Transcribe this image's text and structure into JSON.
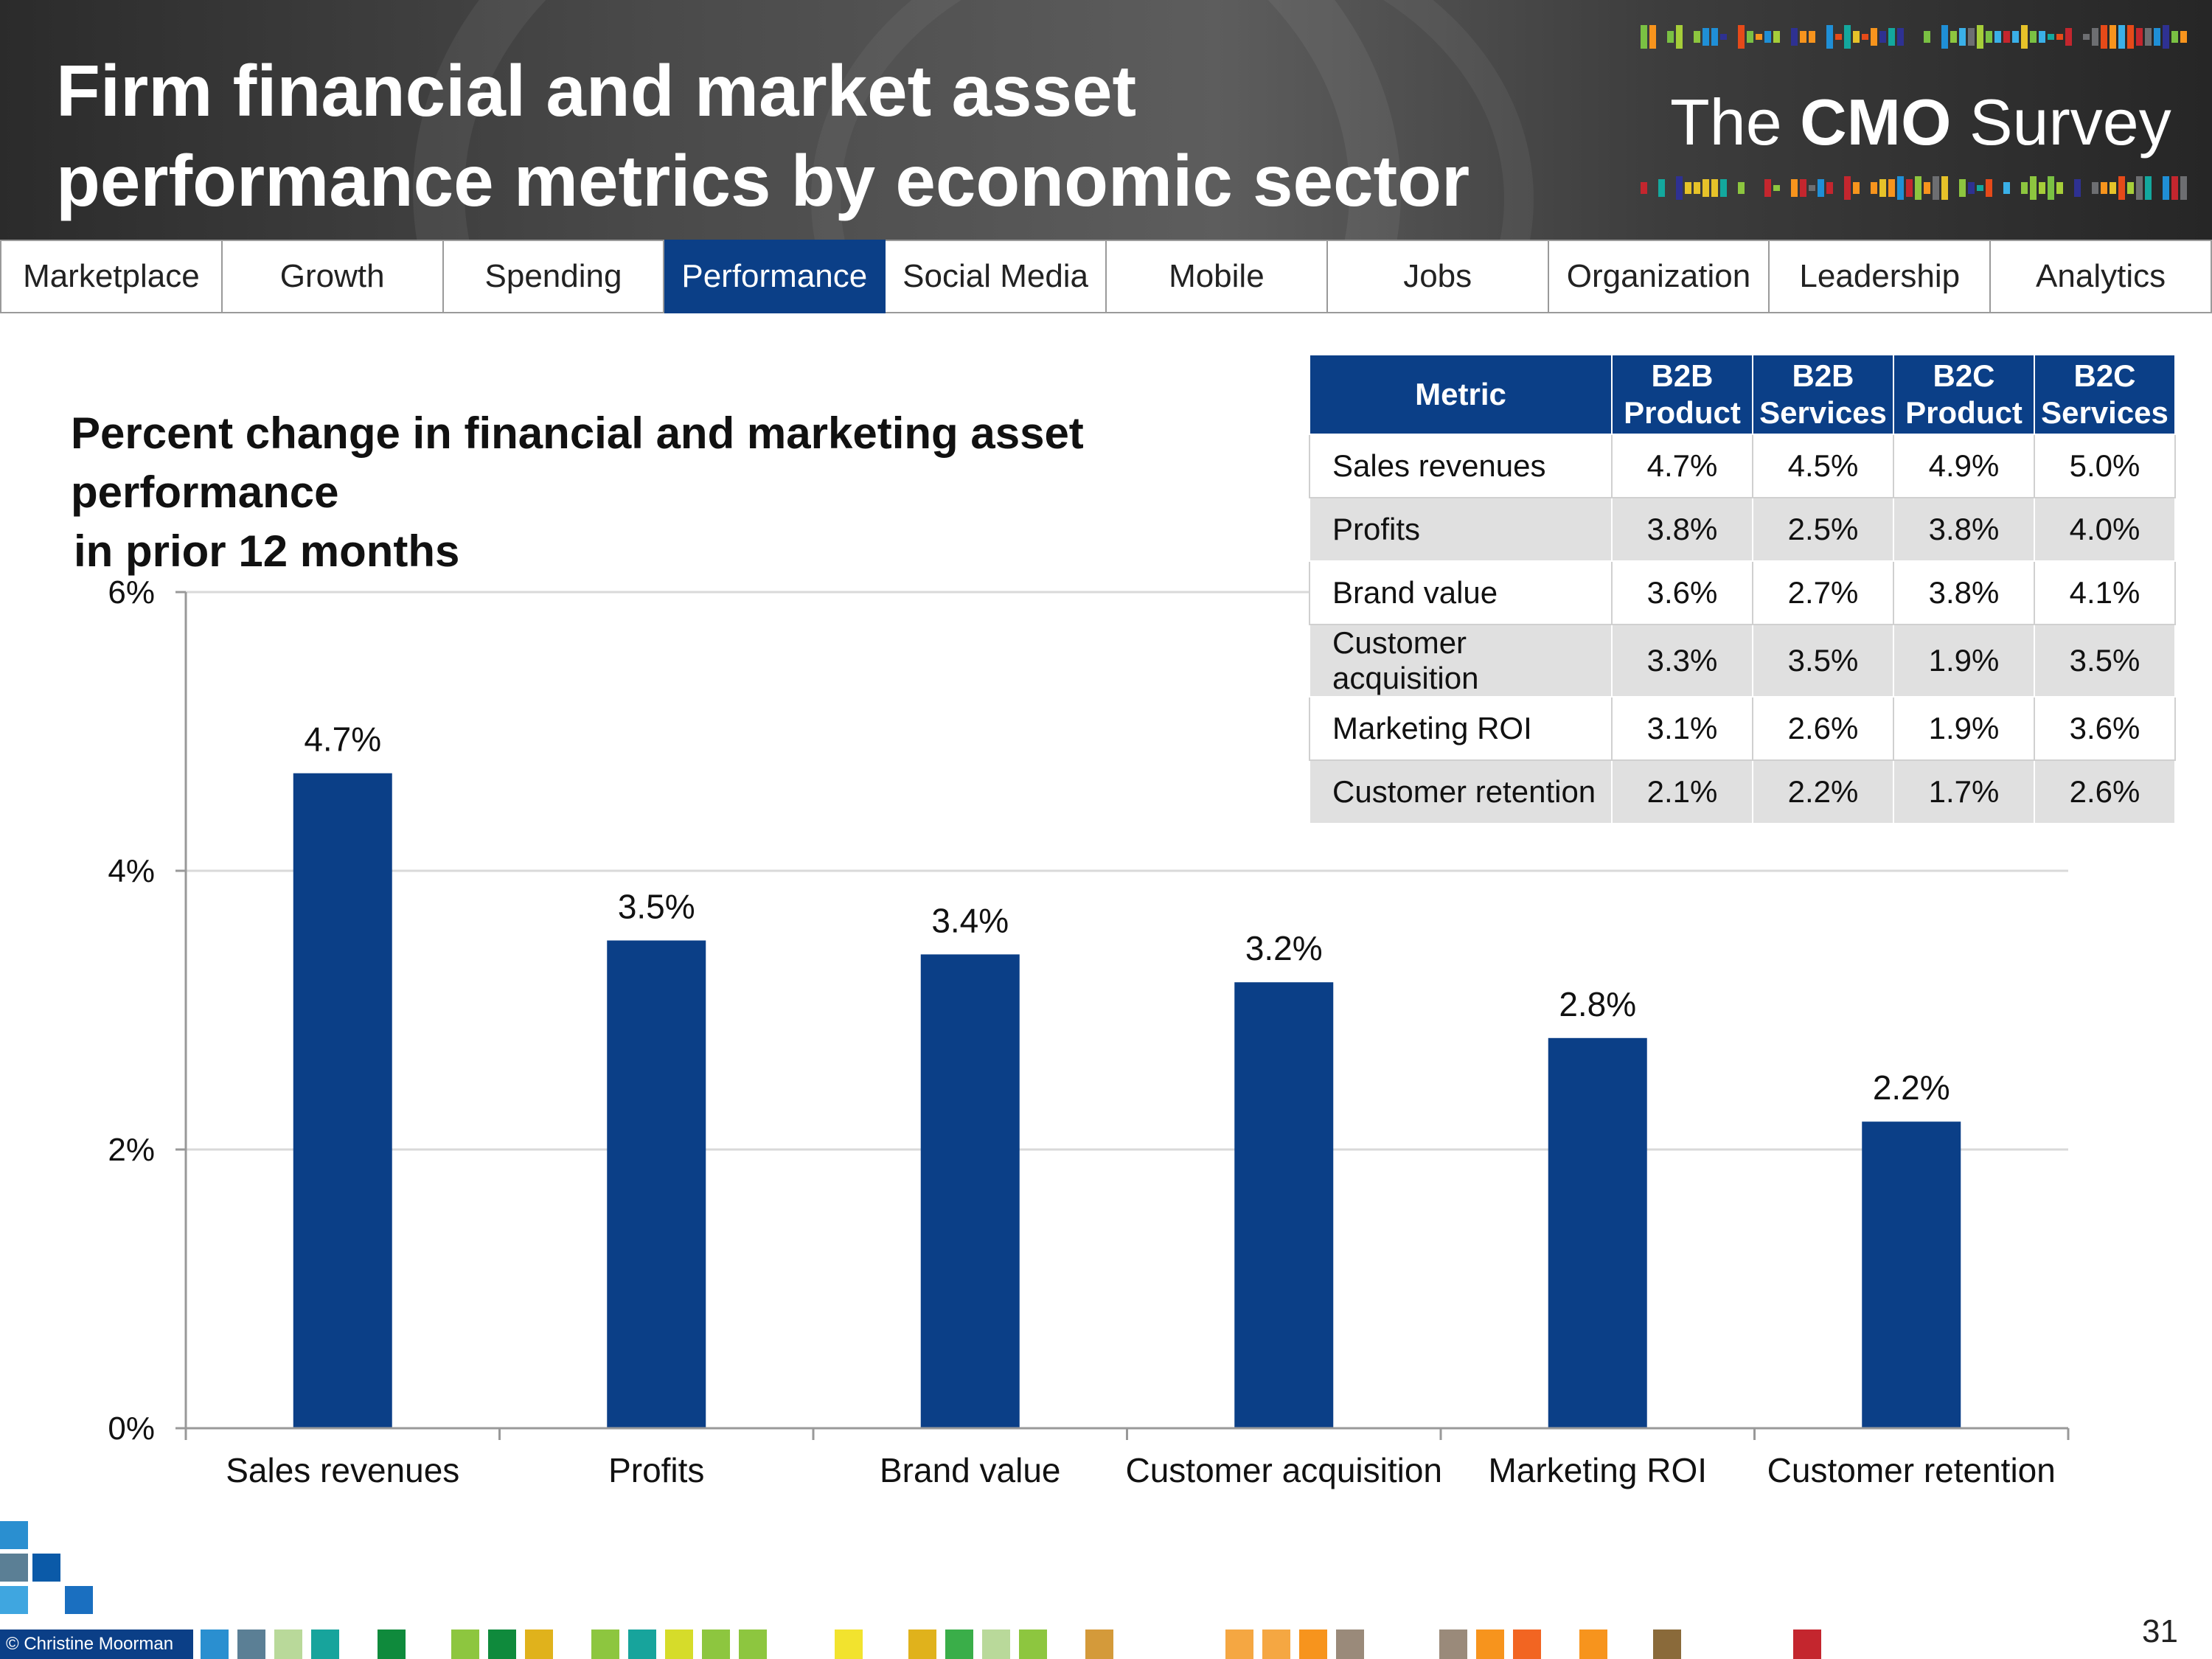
{
  "header": {
    "title_line1": "Firm financial and market asset",
    "title_line2": "performance metrics by economic sector",
    "logo_the": "The",
    "logo_cmo": "CMO",
    "logo_survey": "Survey"
  },
  "nav": {
    "tabs": [
      {
        "label": "Marketplace",
        "active": false
      },
      {
        "label": "Growth",
        "active": false
      },
      {
        "label": "Spending",
        "active": false
      },
      {
        "label": "Performance",
        "active": true
      },
      {
        "label": "Social Media",
        "active": false
      },
      {
        "label": "Mobile",
        "active": false
      },
      {
        "label": "Jobs",
        "active": false
      },
      {
        "label": "Organization",
        "active": false
      },
      {
        "label": "Leadership",
        "active": false
      },
      {
        "label": "Analytics",
        "active": false
      }
    ]
  },
  "chart_title_line1": "Percent change in financial and marketing asset performance",
  "chart_title_line2": "in prior 12 months",
  "chart_data": {
    "type": "bar",
    "title": "Percent change in financial and marketing asset performance in prior 12 months",
    "categories": [
      "Sales revenues",
      "Profits",
      "Brand value",
      "Customer acquisition",
      "Marketing ROI",
      "Customer retention"
    ],
    "values": [
      4.7,
      3.5,
      3.4,
      3.2,
      2.8,
      2.2
    ],
    "data_labels": [
      "4.7%",
      "3.5%",
      "3.4%",
      "3.2%",
      "2.8%",
      "2.2%"
    ],
    "ylim": [
      0,
      6
    ],
    "yticks": [
      0,
      2,
      4,
      6
    ],
    "ytick_labels": [
      "0%",
      "2%",
      "4%",
      "6%"
    ],
    "grid": true,
    "bar_color": "#0b3f87",
    "xlabel": "",
    "ylabel": ""
  },
  "table": {
    "headers": [
      {
        "line1": "Metric",
        "line2": ""
      },
      {
        "line1": "B2B",
        "line2": "Product"
      },
      {
        "line1": "B2B",
        "line2": "Services"
      },
      {
        "line1": "B2C",
        "line2": "Product"
      },
      {
        "line1": "B2C",
        "line2": "Services"
      }
    ],
    "rows": [
      [
        "Sales revenues",
        "4.7%",
        "4.5%",
        "4.9%",
        "5.0%"
      ],
      [
        "Profits",
        "3.8%",
        "2.5%",
        "3.8%",
        "4.0%"
      ],
      [
        "Brand value",
        "3.6%",
        "2.7%",
        "3.8%",
        "4.1%"
      ],
      [
        "Customer acquisition",
        "3.3%",
        "3.5%",
        "1.9%",
        "3.5%"
      ],
      [
        "Marketing ROI",
        "3.1%",
        "2.6%",
        "1.9%",
        "3.6%"
      ],
      [
        "Customer retention",
        "2.1%",
        "2.2%",
        "1.7%",
        "2.6%"
      ]
    ]
  },
  "footer": {
    "copyright": "© Christine Moorman",
    "page_number": "31"
  },
  "colors": {
    "accent": "#0b3f87",
    "header_dark": "#3a3a3a"
  }
}
